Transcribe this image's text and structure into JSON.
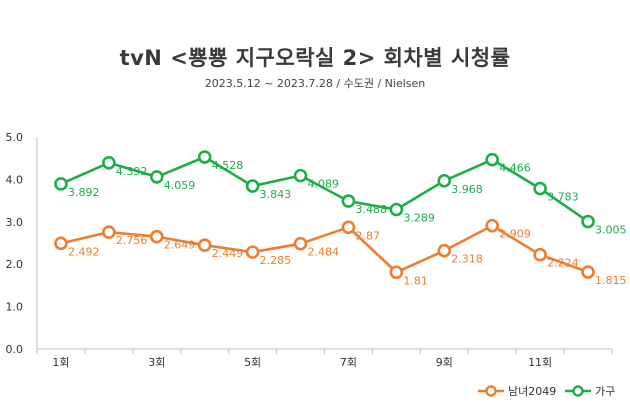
{
  "chart_data": {
    "type": "line",
    "title": "tvN <뿅뿅 지구오락실 2> 회차별 시청률",
    "subtitle": "2023.5.12 ~ 2023.7.28 / 수도권 / Nielsen",
    "x": [
      1,
      2,
      3,
      4,
      5,
      6,
      7,
      8,
      9,
      10,
      11,
      12
    ],
    "x_tick_labels": [
      "1회",
      "3회",
      "5회",
      "7회",
      "9회",
      "11회"
    ],
    "x_tick_values": [
      1,
      3,
      5,
      7,
      9,
      11
    ],
    "ylim": [
      0,
      5
    ],
    "y_ticks": [
      "0.0",
      "1.0",
      "2.0",
      "3.0",
      "4.0",
      "5.0"
    ],
    "y_tick_values": [
      0,
      1,
      2,
      3,
      4,
      5
    ],
    "series": [
      {
        "name": "남녀2049",
        "color": "#ED7D31",
        "values": [
          2.492,
          2.756,
          2.649,
          2.449,
          2.285,
          2.484,
          2.87,
          1.81,
          2.318,
          2.909,
          2.224,
          1.815
        ],
        "labels": [
          "2.492",
          "2.756",
          "2.649",
          "2.449",
          "2.285",
          "2.484",
          "2.87",
          "1.81",
          "2.318",
          "2.909",
          "2.224",
          "1.815"
        ]
      },
      {
        "name": "가구",
        "color": "#1DAD4B",
        "values": [
          3.892,
          4.392,
          4.059,
          4.528,
          3.843,
          4.089,
          3.488,
          3.289,
          3.968,
          4.466,
          3.783,
          3.005
        ],
        "labels": [
          "3.892",
          "4.392",
          "4.059",
          "4.528",
          "3.843",
          "4.089",
          "3.488",
          "3.289",
          "3.968",
          "4.466",
          "3.783",
          "3.005"
        ]
      }
    ],
    "legend": "bottom-right",
    "grid": false
  }
}
